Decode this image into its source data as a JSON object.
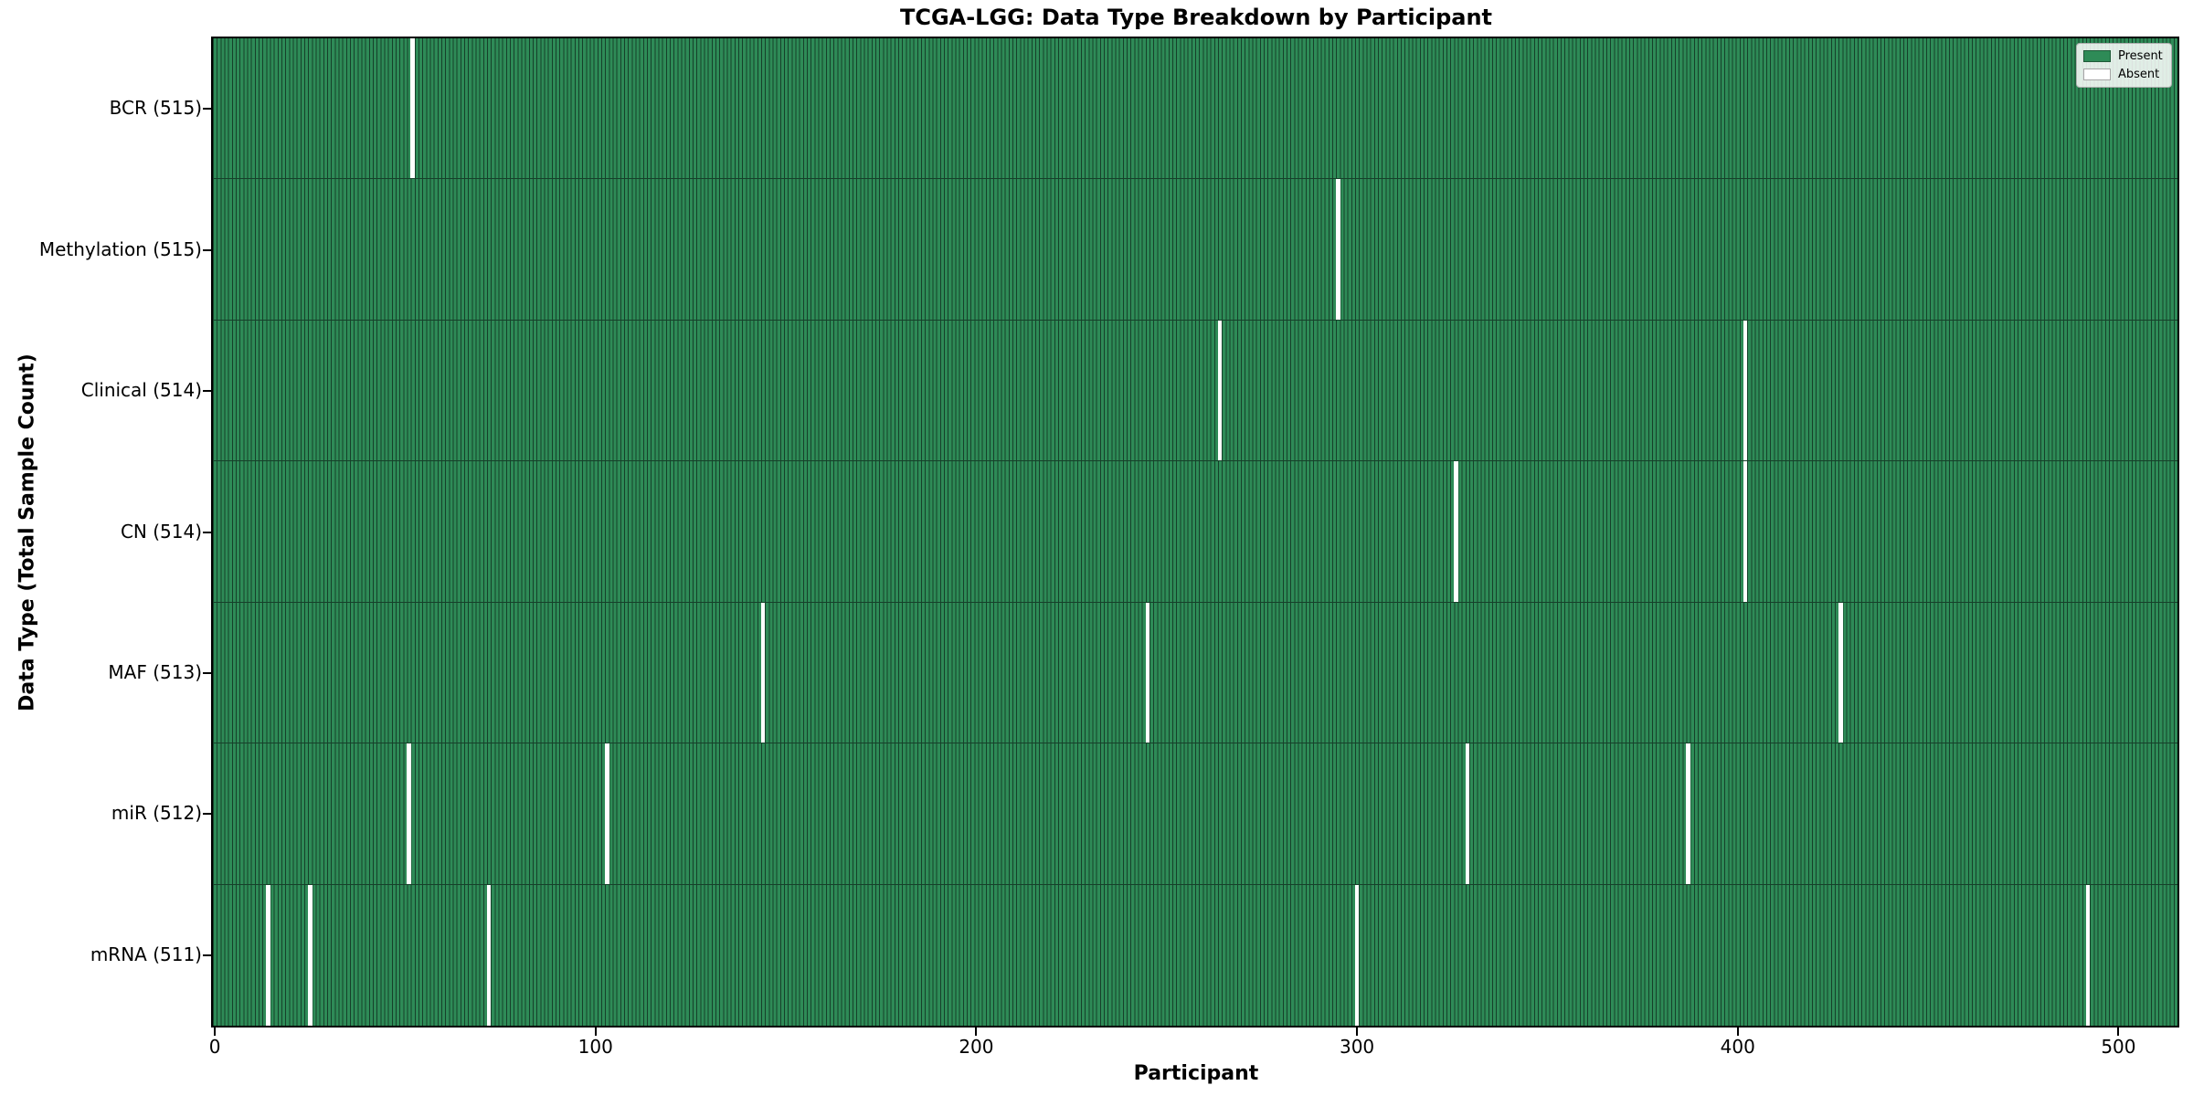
{
  "chart_data": {
    "type": "heatmap",
    "title": "TCGA-LGG: Data Type Breakdown by Participant",
    "xlabel": "Participant",
    "ylabel": "Data Type (Total Sample Count)",
    "x_ticks": [
      0,
      100,
      200,
      300,
      400,
      500
    ],
    "x_range": [
      0,
      516
    ],
    "n_participants": 516,
    "grid": false,
    "legend_position": "upper right",
    "legend": [
      {
        "label": "Present",
        "color": "#2e8b57"
      },
      {
        "label": "Absent",
        "color": "#ffffff"
      }
    ],
    "rows": [
      {
        "label": "BCR (515)",
        "data_type": "BCR",
        "present_count": 515,
        "absent_participant_indices": [
          52
        ]
      },
      {
        "label": "Methylation (515)",
        "data_type": "Methylation",
        "present_count": 515,
        "absent_participant_indices": [
          295
        ]
      },
      {
        "label": "Clinical (514)",
        "data_type": "Clinical",
        "present_count": 514,
        "absent_participant_indices": [
          264,
          402
        ]
      },
      {
        "label": "CN (514)",
        "data_type": "CN",
        "present_count": 514,
        "absent_participant_indices": [
          326,
          402
        ]
      },
      {
        "label": "MAF (513)",
        "data_type": "MAF",
        "present_count": 513,
        "absent_participant_indices": [
          144,
          245,
          427
        ]
      },
      {
        "label": "miR (512)",
        "data_type": "miR",
        "present_count": 512,
        "absent_participant_indices": [
          51,
          103,
          329,
          387
        ]
      },
      {
        "label": "mRNA (511)",
        "data_type": "mRNA",
        "present_count": 511,
        "absent_participant_indices": [
          14,
          25,
          72,
          300,
          492
        ]
      }
    ],
    "colors": {
      "present_fill": "#2e8b57",
      "bar_edge": "#16402a",
      "absent": "#ffffff",
      "spine": "#000000",
      "background": "#ffffff"
    }
  }
}
